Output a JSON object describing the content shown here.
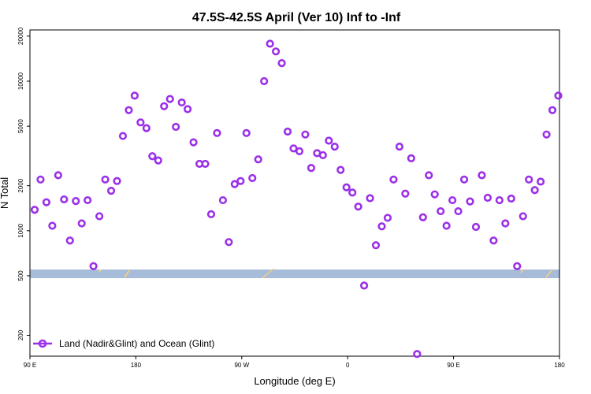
{
  "chart_data": {
    "type": "scatter",
    "title": "47.5S-42.5S April (Ver 10)   Inf to -Inf",
    "xlabel": "Longitude (deg E)",
    "ylabel": "N Total",
    "y_scale": "log",
    "xlim": [
      90,
      540
    ],
    "ylim": [
      145,
      22000
    ],
    "x_ticks": [
      {
        "value": 90,
        "label": "90 E"
      },
      {
        "value": 180,
        "label": "180"
      },
      {
        "value": 270,
        "label": "90 W"
      },
      {
        "value": 360,
        "label": "0"
      },
      {
        "value": 450,
        "label": "90 E"
      },
      {
        "value": 540,
        "label": "180"
      }
    ],
    "y_ticks": [
      {
        "value": 200,
        "label": "200"
      },
      {
        "value": 500,
        "label": "500"
      },
      {
        "value": 1000,
        "label": "1000"
      },
      {
        "value": 2000,
        "label": "2000"
      },
      {
        "value": 5000,
        "label": "5000"
      },
      {
        "value": 10000,
        "label": "10000"
      },
      {
        "value": 20000,
        "label": "20000"
      }
    ],
    "colors": {
      "series": "#9b30e8",
      "ocean_band": "#a7bcd9",
      "land": "#f7d27a"
    },
    "legend": {
      "position": "bottom-left",
      "entries": [
        "Land (Nadir&Glint) and Ocean (Glint)"
      ]
    },
    "series": [
      {
        "name": "Land (Nadir&Glint) and Ocean (Glint)",
        "x": [
          94,
          99,
          104,
          109,
          114,
          119,
          124,
          129,
          134,
          139,
          144,
          149,
          154,
          159,
          164,
          169,
          174,
          179,
          184,
          189,
          194,
          199,
          204,
          209,
          214,
          219,
          224,
          229,
          234,
          239,
          244,
          249,
          254,
          259,
          264,
          269,
          274,
          279,
          284,
          289,
          294,
          299,
          304,
          309,
          314,
          319,
          324,
          329,
          334,
          339,
          344,
          349,
          354,
          359,
          364,
          369,
          374,
          379,
          384,
          389,
          394,
          399,
          404,
          409,
          414,
          419,
          424,
          429,
          434,
          439,
          444,
          449,
          454,
          459,
          464,
          469,
          474,
          479,
          484,
          489,
          494,
          499,
          504,
          509,
          514,
          519,
          524,
          529,
          534,
          539
        ],
        "y": [
          1380,
          2200,
          1550,
          1080,
          2350,
          1620,
          860,
          1580,
          1120,
          1600,
          580,
          1250,
          2200,
          1850,
          2150,
          4300,
          6400,
          8000,
          5300,
          4850,
          3150,
          2950,
          6800,
          7600,
          4950,
          7200,
          6500,
          3900,
          2800,
          2800,
          1290,
          4500,
          1600,
          840,
          2050,
          2150,
          4500,
          2250,
          3000,
          10000,
          17800,
          15800,
          13200,
          4600,
          3550,
          3400,
          4400,
          2630,
          3300,
          3200,
          4000,
          3650,
          2550,
          1950,
          1800,
          1450,
          430,
          1650,
          800,
          1070,
          1220,
          2200,
          3650,
          1770,
          3050,
          150,
          1230,
          2350,
          1750,
          1350,
          1080,
          1600,
          1350,
          2200,
          1570,
          1060,
          2350,
          1660,
          860,
          1600,
          1120,
          1640,
          580,
          1250,
          2200,
          1870,
          2130,
          4400,
          6400,
          8000
        ]
      }
    ]
  }
}
